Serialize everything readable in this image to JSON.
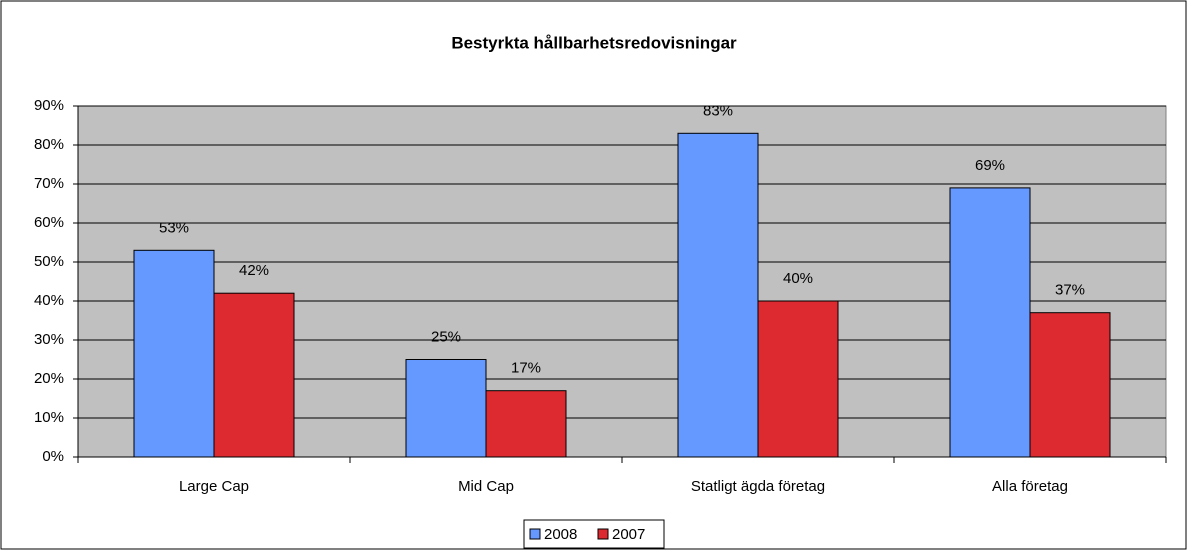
{
  "chart_data": {
    "type": "bar",
    "title": "Bestyrkta hållbarhetsredovisningar",
    "categories": [
      "Large Cap",
      "Mid Cap",
      "Statligt ägda företag",
      "Alla företag"
    ],
    "series": [
      {
        "name": "2008",
        "color": "#6699ff",
        "values": [
          53,
          25,
          83,
          69
        ],
        "value_labels": [
          "53%",
          "25%",
          "83%",
          "69%"
        ]
      },
      {
        "name": "2007",
        "color": "#dd2a30",
        "values": [
          42,
          17,
          40,
          37
        ],
        "value_labels": [
          "42%",
          "17%",
          "40%",
          "37%"
        ]
      }
    ],
    "ylim": [
      0,
      90
    ],
    "yticks": [
      {
        "value": 0,
        "label": "0%"
      },
      {
        "value": 10,
        "label": "10%"
      },
      {
        "value": 20,
        "label": "20%"
      },
      {
        "value": 30,
        "label": "30%"
      },
      {
        "value": 40,
        "label": "40%"
      },
      {
        "value": 50,
        "label": "50%"
      },
      {
        "value": 60,
        "label": "60%"
      },
      {
        "value": 70,
        "label": "70%"
      },
      {
        "value": 80,
        "label": "80%"
      },
      {
        "value": 90,
        "label": "90%"
      }
    ],
    "grid": true,
    "legend": "bottom"
  }
}
